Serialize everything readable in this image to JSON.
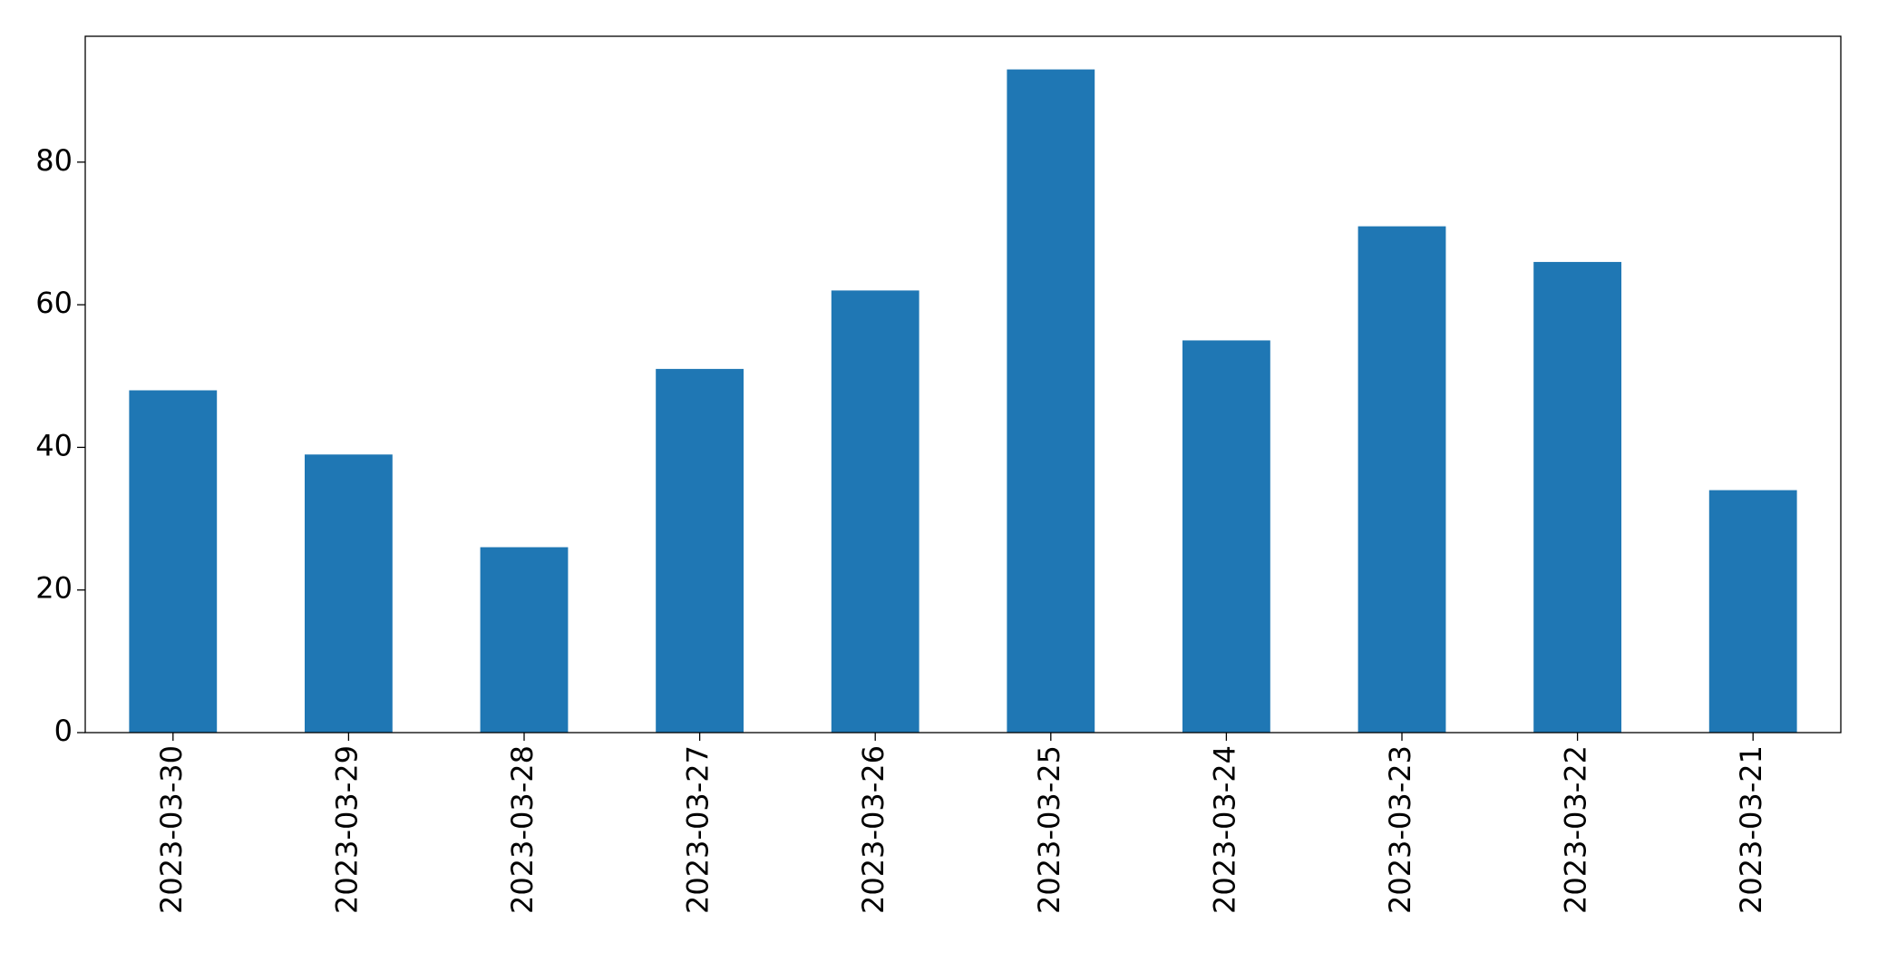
{
  "chart_data": {
    "type": "bar",
    "categories": [
      "2023-03-30",
      "2023-03-29",
      "2023-03-28",
      "2023-03-27",
      "2023-03-26",
      "2023-03-25",
      "2023-03-24",
      "2023-03-23",
      "2023-03-22",
      "2023-03-21"
    ],
    "values": [
      48,
      39,
      26,
      51,
      62,
      93,
      55,
      71,
      66,
      34
    ],
    "color": "#1f77b4",
    "ylim": [
      0,
      97.65
    ],
    "yticks": [
      0,
      20,
      40,
      60,
      80
    ],
    "grid": false
  }
}
